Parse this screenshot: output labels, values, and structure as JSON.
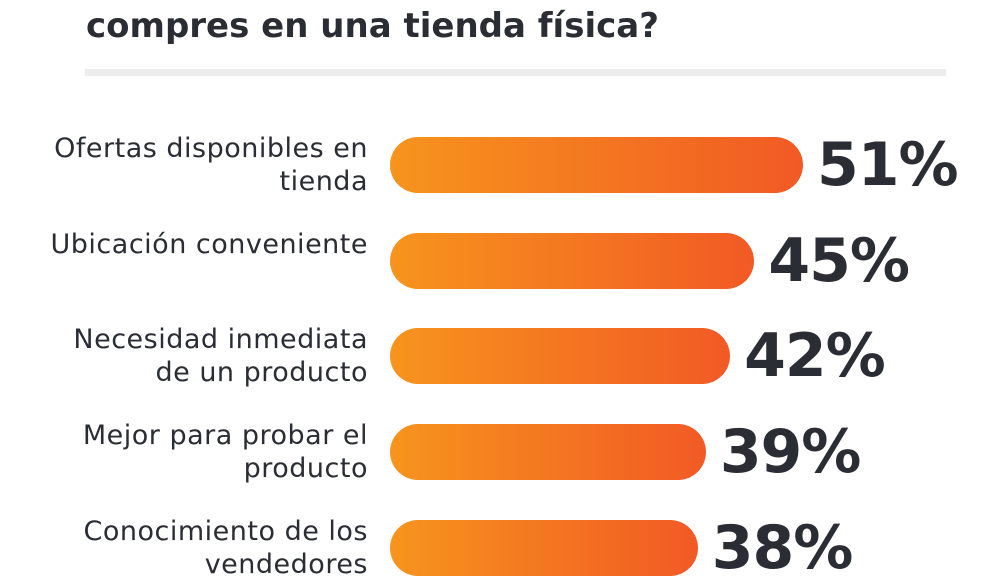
{
  "chart_data": {
    "type": "bar",
    "orientation": "horizontal",
    "title": "compres en una tienda física?",
    "categories": [
      "Ofertas disponibles en tienda",
      "Ubicación conveniente",
      "Necesidad inmediata de un producto",
      "Mejor para probar el producto",
      "Conocimiento de los vendedores"
    ],
    "values": [
      51,
      45,
      42,
      39,
      38
    ],
    "value_labels": [
      "51%",
      "45%",
      "42%",
      "39%",
      "38%"
    ],
    "color": [
      "#f7941d",
      "#f15a24"
    ]
  }
}
